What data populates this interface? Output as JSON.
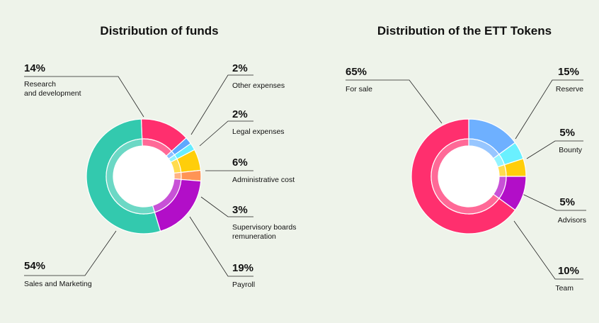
{
  "chart_data": [
    {
      "type": "pie",
      "title": "Distribution of funds",
      "slices": [
        {
          "label": "Research and development",
          "value": 14,
          "display": "14%",
          "color": "#ff2f6e"
        },
        {
          "label": "Other expenses",
          "value": 2,
          "display": "2%",
          "color": "#5fa8ff"
        },
        {
          "label": "Legal expenses",
          "value": 2,
          "display": "2%",
          "color": "#67edff"
        },
        {
          "label": "Administrative cost",
          "value": 6,
          "display": "6%",
          "color": "#ffce0a"
        },
        {
          "label": "Supervisory boards remuneration",
          "value": 3,
          "display": "3%",
          "color": "#ff9455"
        },
        {
          "label": "Payroll",
          "value": 19,
          "display": "19%",
          "color": "#b20ec8"
        },
        {
          "label": "Sales and Marketing",
          "value": 54,
          "display": "54%",
          "color": "#33c9ae"
        }
      ]
    },
    {
      "type": "pie",
      "title": "Distribution of the ETT Tokens",
      "slices": [
        {
          "label": "Reserve",
          "value": 15,
          "display": "15%",
          "color": "#6eb0ff"
        },
        {
          "label": "Bounty",
          "value": 5,
          "display": "5%",
          "color": "#6af0ff"
        },
        {
          "label": "Advisors",
          "value": 5,
          "display": "5%",
          "color": "#ffce0a"
        },
        {
          "label": "Team",
          "value": 10,
          "display": "10%",
          "color": "#b20ec8"
        },
        {
          "label": "For sale",
          "value": 65,
          "display": "65%",
          "color": "#ff2f6e"
        }
      ]
    }
  ]
}
